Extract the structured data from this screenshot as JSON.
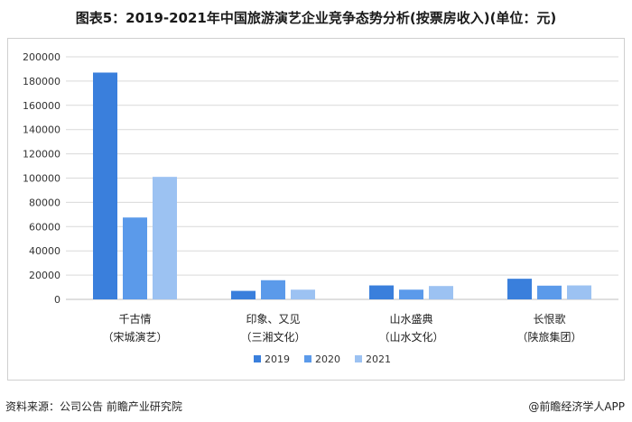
{
  "title": "图表5：2019-2021年中国旅游演艺企业竞争态势分析(按票房收入)(单位：元)",
  "footer": {
    "source": "资料来源：公司公告 前瞻产业研究院",
    "brand": "@前瞻经济学人APP"
  },
  "colors": {
    "2019": "#3a7fdc",
    "2020": "#5b9aea",
    "2021": "#9cc2f2",
    "grid": "#d9d9d9",
    "axis": "#bfbfbf"
  },
  "chart_data": {
    "type": "bar",
    "title": "图表5：2019-2021年中国旅游演艺企业竞争态势分析(按票房收入)(单位：元)",
    "xlabel": "",
    "ylabel": "",
    "ylim": [
      0,
      200000
    ],
    "yticks": [
      0,
      20000,
      40000,
      60000,
      80000,
      100000,
      120000,
      140000,
      160000,
      180000,
      200000
    ],
    "ytick_labels": [
      "0",
      "20000",
      "40000",
      "60000",
      "80000",
      "100000",
      "120000",
      "140000",
      "160000",
      "180000",
      "200000"
    ],
    "grid": true,
    "legend_position": "bottom",
    "categories": [
      [
        "千古情",
        "（宋城演艺）"
      ],
      [
        "印象、又见",
        "（三湘文化）"
      ],
      [
        "山水盛典",
        "（山水文化）"
      ],
      [
        "长恨歌",
        "（陕旅集团）"
      ]
    ],
    "series": [
      {
        "name": "2019",
        "values": [
          187000,
          7000,
          11500,
          17000
        ]
      },
      {
        "name": "2020",
        "values": [
          67500,
          15800,
          8000,
          11300
        ]
      },
      {
        "name": "2021",
        "values": [
          101000,
          8000,
          11000,
          11500
        ]
      }
    ]
  }
}
